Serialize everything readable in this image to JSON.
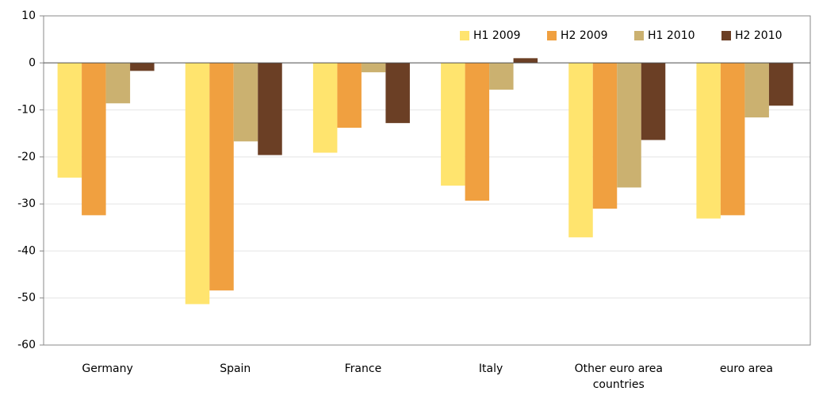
{
  "chart_data": {
    "type": "bar",
    "categories": [
      "Germany",
      "Spain",
      "France",
      "Italy",
      "Other euro area countries",
      "euro area"
    ],
    "series": [
      {
        "name": "H1 2009",
        "color": "#ffe46e",
        "values": [
          -24.4,
          -51.3,
          -19.1,
          -26.1,
          -37.1,
          -33.1
        ]
      },
      {
        "name": "H2 2009",
        "color": "#f0a040",
        "values": [
          -32.4,
          -48.4,
          -13.8,
          -29.3,
          -31.0,
          -32.4
        ]
      },
      {
        "name": "H1 2010",
        "color": "#cbb170",
        "values": [
          -8.6,
          -16.7,
          -2.0,
          -5.7,
          -26.5,
          -11.6
        ]
      },
      {
        "name": "H2 2010",
        "color": "#6b3f25",
        "values": [
          -1.7,
          -19.6,
          -12.8,
          1.0,
          -16.4,
          -9.1
        ]
      }
    ],
    "ylim": [
      -60,
      10
    ],
    "yticks": [
      -60,
      -50,
      -40,
      -30,
      -20,
      -10,
      0,
      10
    ],
    "grid": true,
    "legend": "top-right"
  }
}
